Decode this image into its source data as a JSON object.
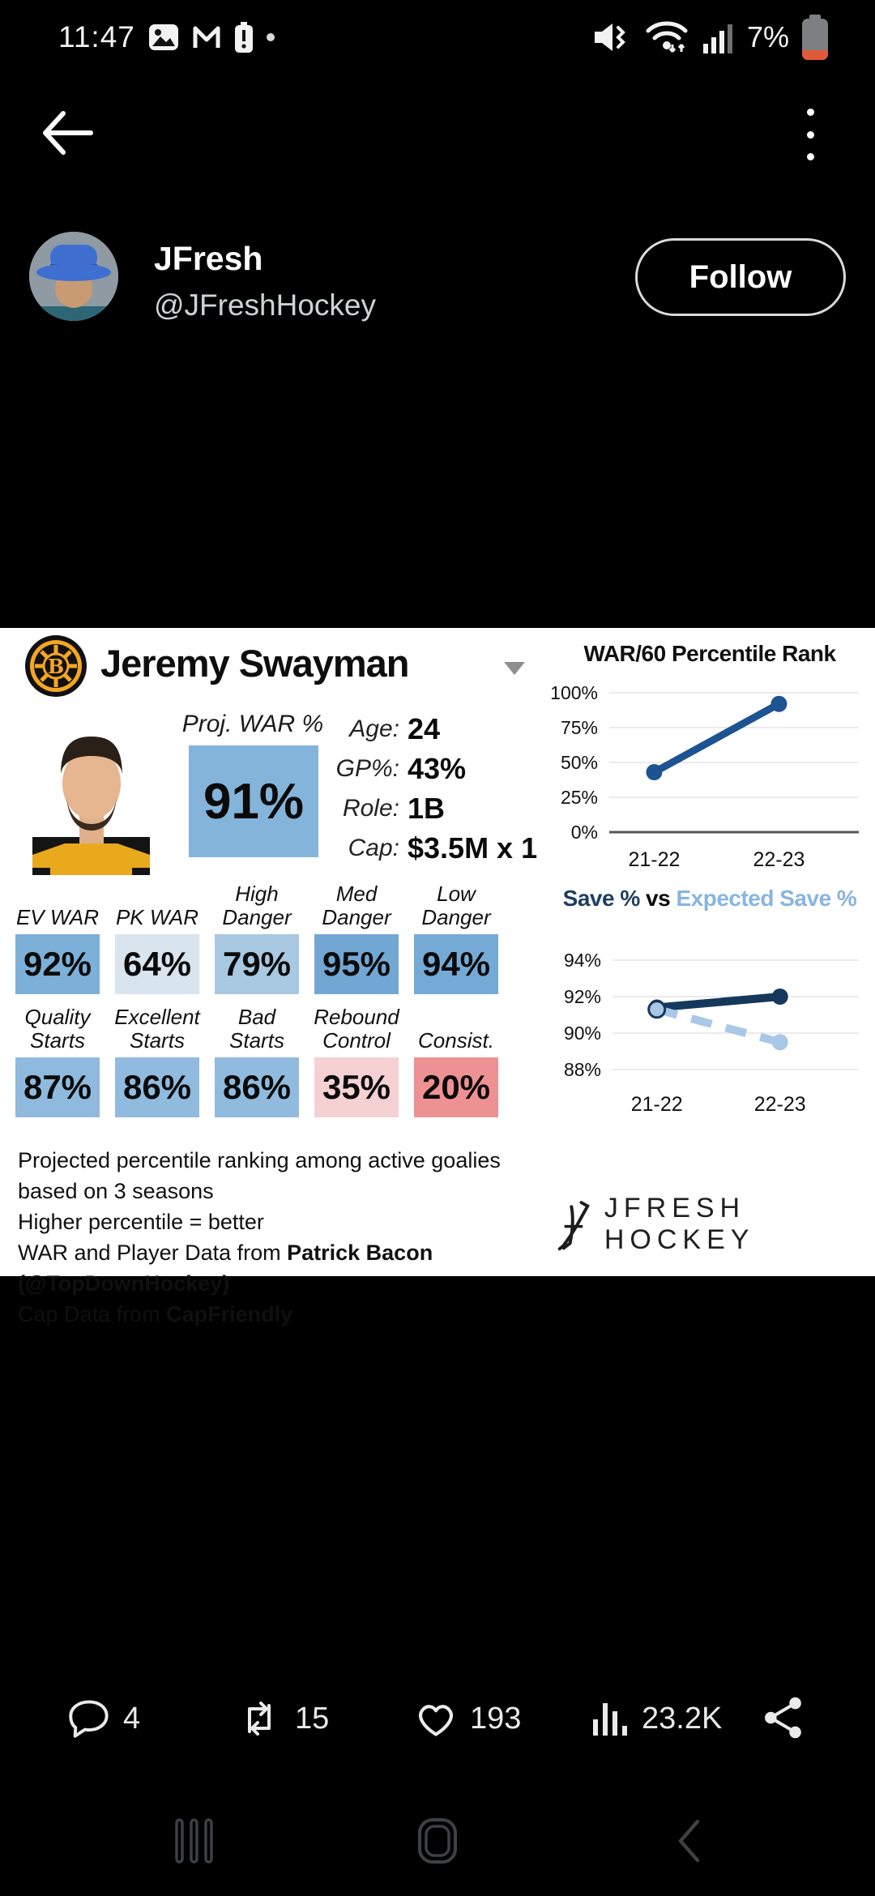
{
  "status_bar": {
    "time": "11:47",
    "battery_percent": "7%",
    "notification_icons": [
      "gallery-icon",
      "gmail-icon",
      "battery-alert-icon",
      "notification-dot"
    ],
    "system_icons": [
      "vibrate-icon",
      "wifi-arrows-icon",
      "signal-strength-icon",
      "battery-low-icon"
    ],
    "battery_low_color": "#e05a3a"
  },
  "tweet": {
    "author_name": "JFresh",
    "author_handle": "@JFreshHockey",
    "follow_label": "Follow",
    "actions": {
      "reply_count": "4",
      "retweet_count": "15",
      "like_count": "193",
      "view_count": "23.2K"
    }
  },
  "card": {
    "player_name": "Jeremy Swayman",
    "team_logo": "boston-bruins-logo",
    "proj_war": {
      "label": "Proj. WAR %",
      "value": "91%",
      "color": "#84b4da"
    },
    "bio": [
      {
        "label": "Age:",
        "value": "24"
      },
      {
        "label": "GP%:",
        "value": "43%"
      },
      {
        "label": "Role:",
        "value": "1B"
      },
      {
        "label": "Cap:",
        "value": "$3.5M x 1"
      }
    ],
    "stats_row1": [
      {
        "label": "EV WAR",
        "value": "92%",
        "color": "#7db0d8"
      },
      {
        "label": "PK WAR",
        "value": "64%",
        "color": "#d8e4ee"
      },
      {
        "label": "High Danger",
        "value": "79%",
        "color": "#a9c8e2"
      },
      {
        "label": "Med Danger",
        "value": "95%",
        "color": "#72a7d4"
      },
      {
        "label": "Low Danger",
        "value": "94%",
        "color": "#76aad6"
      }
    ],
    "stats_row2": [
      {
        "label": "Quality Starts",
        "value": "87%",
        "color": "#8fbade"
      },
      {
        "label": "Excellent Starts",
        "value": "86%",
        "color": "#90bbde"
      },
      {
        "label": "Bad Starts",
        "value": "86%",
        "color": "#90bbde"
      },
      {
        "label": "Rebound Control",
        "value": "35%",
        "color": "#f5d1d4"
      },
      {
        "label": "Consist.",
        "value": "20%",
        "color": "#ee9193"
      }
    ],
    "footnotes": [
      {
        "pre": "Projected percentile ranking among active goalies based on 3 seasons",
        "bold": ""
      },
      {
        "pre": "Higher percentile = better",
        "bold": ""
      },
      {
        "pre": "WAR and Player Data from ",
        "bold": "Patrick Bacon (@TopDownHockey)"
      },
      {
        "pre": "Cap Data from ",
        "bold": "CapFriendly"
      }
    ],
    "brand": "JFRESH HOCKEY"
  },
  "chart_data": [
    {
      "type": "line",
      "title": "WAR/60 Percentile Rank",
      "categories": [
        "21-22",
        "22-23"
      ],
      "series": [
        {
          "name": "WAR/60 Percentile",
          "values": [
            43,
            92
          ],
          "color": "#1d5390",
          "style": "solid"
        }
      ],
      "ylim": [
        0,
        100
      ],
      "yticks": [
        100,
        75,
        50,
        25,
        0
      ],
      "ytick_suffix": "%",
      "baseline_axis": true,
      "grid": true,
      "legend": "none"
    },
    {
      "type": "line",
      "title": "Save % vs Expected Save %",
      "title_parts": [
        {
          "text": "Save % ",
          "color": "#1d3e5f"
        },
        {
          "text": "vs ",
          "color": "#0b0b0b"
        },
        {
          "text": "Expected Save %",
          "color": "#88b5e0"
        }
      ],
      "categories": [
        "21-22",
        "22-23"
      ],
      "series": [
        {
          "name": "Save %",
          "values": [
            91.4,
            92.0
          ],
          "color": "#16385c",
          "style": "solid"
        },
        {
          "name": "Expected Save %",
          "values": [
            91.3,
            89.5
          ],
          "color": "#a9c8e8",
          "style": "dashed"
        }
      ],
      "ylim": [
        87.6,
        94.8
      ],
      "yticks": [
        94,
        92,
        90,
        88
      ],
      "ytick_suffix": "%",
      "baseline_axis": false,
      "grid": true,
      "legend": "none"
    }
  ],
  "bottom_nav": [
    "recents",
    "home",
    "back"
  ]
}
